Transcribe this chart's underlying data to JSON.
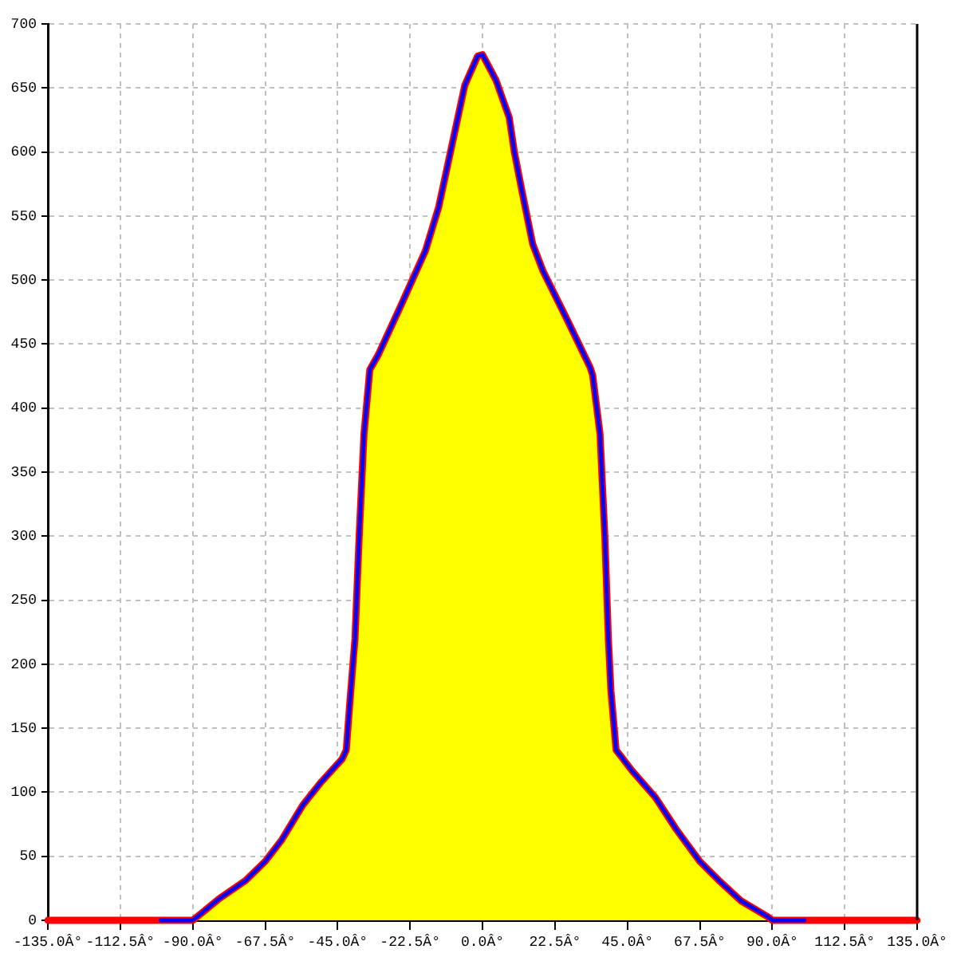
{
  "chart_data": {
    "type": "line",
    "x": [
      -100,
      -90,
      -81.7,
      -73.6,
      -67.5,
      -62.3,
      -55.8,
      -50.1,
      -43.6,
      -42.3,
      -41.2,
      -39.6,
      -38.3,
      -36.8,
      -35,
      -32.3,
      -25,
      -17.7,
      -13.6,
      -9.6,
      -5.5,
      -1.5,
      0,
      4.2,
      8.3,
      9.9,
      12.3,
      15.6,
      18.8,
      26.1,
      33.4,
      34.2,
      36.5,
      38,
      39.1,
      39.9,
      41.5,
      46.4,
      53.7,
      60.2,
      67.5,
      73.9,
      80.4,
      88.5,
      90,
      100
    ],
    "series": [
      {
        "type": "area",
        "color": "#ffff00",
        "x": [
          -90,
          -81.7,
          -73.6,
          -67.5,
          -62.3,
          -55.8,
          -50.1,
          -43.6,
          -42.3,
          -41.2,
          -39.6,
          -38.3,
          -36.8,
          -35,
          -32.3,
          -25,
          -17.7,
          -13.6,
          -9.6,
          -5.5,
          -1.5,
          0,
          4.2,
          8.3,
          9.9,
          12.3,
          15.6,
          18.8,
          26.1,
          33.4,
          34.2,
          36.5,
          38,
          39.1,
          39.9,
          41.5,
          46.4,
          53.7,
          60.2,
          67.5,
          73.9,
          80.4,
          88.5,
          90
        ],
        "values": [
          0,
          17,
          31,
          46,
          63,
          90,
          108,
          126,
          133,
          170,
          220,
          300,
          380,
          430,
          442,
          482,
          523,
          557,
          604,
          652,
          675,
          676,
          656,
          627,
          600,
          569,
          528,
          507,
          470,
          432,
          426,
          380,
          300,
          220,
          179,
          133,
          117,
          96,
          71,
          46,
          30,
          15,
          3,
          0
        ]
      },
      {
        "color": "#ff0000",
        "x": [
          -135,
          -100,
          -90,
          -81.7,
          -73.6,
          -67.5,
          -62.3,
          -55.8,
          -50.1,
          -43.6,
          -42.3,
          -41.2,
          -39.6,
          -38.3,
          -36.8,
          -35,
          -32.3,
          -25,
          -17.7,
          -13.6,
          -9.6,
          -5.5,
          -1.5,
          0,
          4.2,
          8.3,
          9.9,
          12.3,
          15.6,
          18.8,
          26.1,
          33.4,
          34.2,
          36.5,
          38,
          39.1,
          39.9,
          41.5,
          46.4,
          53.7,
          60.2,
          67.5,
          73.9,
          80.4,
          88.5,
          90,
          100,
          135
        ],
        "values": [
          0,
          0,
          0,
          17,
          31,
          46,
          63,
          90,
          108,
          126,
          133,
          170,
          220,
          300,
          380,
          430,
          442,
          482,
          523,
          557,
          604,
          652,
          675,
          676,
          656,
          627,
          600,
          569,
          528,
          507,
          470,
          432,
          426,
          380,
          300,
          220,
          179,
          133,
          117,
          96,
          71,
          46,
          30,
          15,
          3,
          0,
          0,
          0
        ]
      },
      {
        "color": "#0000ff",
        "values": [
          0,
          0,
          17,
          31,
          46,
          63,
          90,
          108,
          126,
          133,
          170,
          220,
          300,
          380,
          430,
          442,
          482,
          523,
          557,
          604,
          652,
          675,
          676,
          656,
          627,
          600,
          569,
          528,
          507,
          470,
          432,
          426,
          380,
          300,
          220,
          179,
          133,
          117,
          96,
          71,
          46,
          30,
          15,
          3,
          0,
          0
        ]
      }
    ],
    "xlim": [
      -135,
      135
    ],
    "xticks": [
      {
        "value": -135,
        "label": "-135.0Â°"
      },
      {
        "value": -112.5,
        "label": "-112.5Â°"
      },
      {
        "value": -90,
        "label": "-90.0Â°"
      },
      {
        "value": -67.5,
        "label": "-67.5Â°"
      },
      {
        "value": -45,
        "label": "-45.0Â°"
      },
      {
        "value": -22.5,
        "label": "-22.5Â°"
      },
      {
        "value": 0,
        "label": "0.0Â°"
      },
      {
        "value": 22.5,
        "label": "22.5Â°"
      },
      {
        "value": 45,
        "label": "45.0Â°"
      },
      {
        "value": 67.5,
        "label": "67.5Â°"
      },
      {
        "value": 90,
        "label": "90.0Â°"
      },
      {
        "value": 112.5,
        "label": "112.5Â°"
      },
      {
        "value": 135,
        "label": "135.0Â°"
      }
    ],
    "ylim": [
      0,
      700
    ],
    "yticks": [
      0,
      50,
      100,
      150,
      200,
      250,
      300,
      350,
      400,
      450,
      500,
      550,
      600,
      650,
      700
    ],
    "grid": true
  }
}
